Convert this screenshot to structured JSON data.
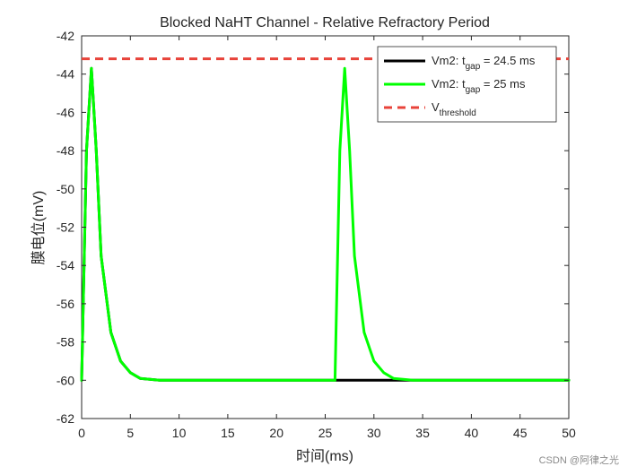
{
  "chart_data": {
    "type": "line",
    "title": "Blocked NaHT Channel - Relative Refractory Period",
    "xlabel": "时间(ms)",
    "ylabel": "膜电位(mV)",
    "xlim": [
      0,
      50
    ],
    "ylim": [
      -62,
      -42
    ],
    "xticks": [
      0,
      5,
      10,
      15,
      20,
      25,
      30,
      35,
      40,
      45,
      50
    ],
    "yticks": [
      -62,
      -60,
      -58,
      -56,
      -54,
      -52,
      -50,
      -48,
      -46,
      -44,
      -42
    ],
    "threshold": {
      "value": -43.2,
      "color": "#e8433a",
      "style": "dashed"
    },
    "series": [
      {
        "name": "Vm2: t_gap = 24.5 ms",
        "color": "#000000",
        "x": [
          0,
          0.5,
          1,
          1.5,
          2,
          3,
          4,
          5,
          6,
          8,
          10,
          15,
          20,
          25,
          26,
          27,
          28,
          30,
          32,
          35,
          40,
          45,
          50
        ],
        "y": [
          -60,
          -48,
          -43.7,
          -48,
          -53.5,
          -57.5,
          -59,
          -59.6,
          -59.9,
          -60,
          -60,
          -60,
          -60,
          -60,
          -60,
          -60,
          -60,
          -60,
          -60,
          -60,
          -60,
          -60,
          -60
        ]
      },
      {
        "name": "Vm2: t_gap = 25 ms",
        "color": "#00ff00",
        "x": [
          0,
          0.5,
          1,
          1.5,
          2,
          3,
          4,
          5,
          6,
          8,
          10,
          15,
          20,
          25,
          26,
          26.5,
          27,
          27.5,
          28,
          29,
          30,
          31,
          32,
          34,
          36,
          40,
          45,
          50
        ],
        "y": [
          -60,
          -48,
          -43.7,
          -48,
          -53.5,
          -57.5,
          -59,
          -59.6,
          -59.9,
          -60,
          -60,
          -60,
          -60,
          -60,
          -60,
          -48,
          -43.7,
          -48,
          -53.5,
          -57.5,
          -59,
          -59.6,
          -59.9,
          -60,
          -60,
          -60,
          -60,
          -60
        ]
      }
    ],
    "legend": {
      "position": "top-right",
      "entries": [
        {
          "prefix": "Vm2: t",
          "sub": "gap",
          "suffix": " = 24.5 ms",
          "color": "#000000",
          "style": "solid"
        },
        {
          "prefix": "Vm2: t",
          "sub": "gap",
          "suffix": " = 25 ms",
          "color": "#00ff00",
          "style": "solid"
        },
        {
          "prefix": "V",
          "sub": "threshold",
          "suffix": "",
          "color": "#e8433a",
          "style": "dashed"
        }
      ]
    }
  },
  "watermark": "CSDN @阿律之光"
}
